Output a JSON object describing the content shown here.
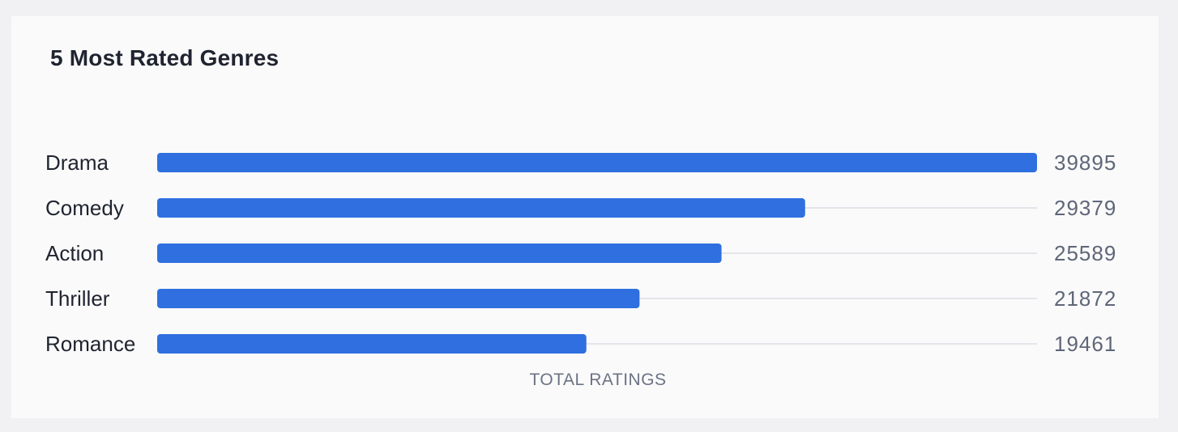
{
  "card": {
    "title": "5 Most Rated Genres"
  },
  "colors": {
    "bar": "#2f6fe0",
    "track": "#e3e5ea",
    "background": "#fafafa"
  },
  "chart_data": {
    "type": "bar",
    "orientation": "horizontal",
    "title": "5 Most Rated Genres",
    "xlabel": "TOTAL RATINGS",
    "ylabel": "",
    "categories": [
      "Drama",
      "Comedy",
      "Action",
      "Thriller",
      "Romance"
    ],
    "values": [
      39895,
      29379,
      25589,
      21872,
      19461
    ],
    "xlim": [
      0,
      39895
    ],
    "grid": false,
    "legend": "none"
  }
}
